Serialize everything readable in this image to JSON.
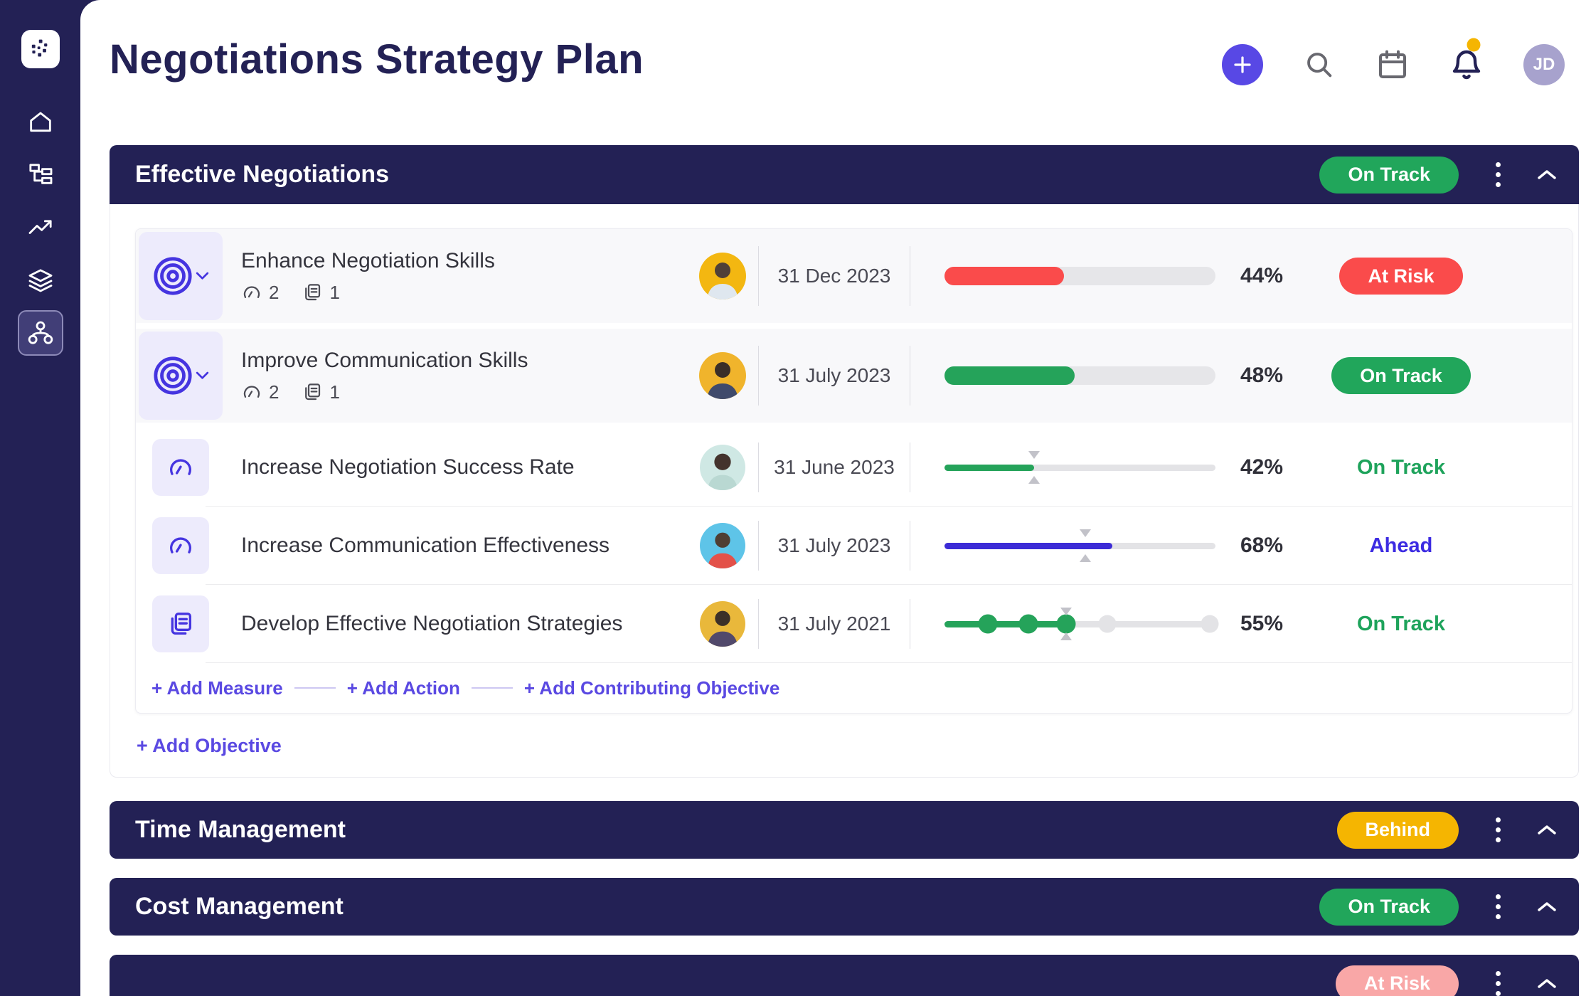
{
  "page_title": "Negotiations Strategy Plan",
  "topbar": {
    "add_label": "+",
    "icons": [
      "add-button",
      "search-icon",
      "calendar-icon",
      "notifications-icon"
    ],
    "notification_unread": true,
    "avatar_initials": "JD"
  },
  "colors": {
    "navy": "#232155",
    "accent": "#5848E5",
    "green": "#21A65B",
    "red": "#FA4B4B",
    "yellow": "#F5B501",
    "pink": "#F9A7A7",
    "indigo_text": "#3C2BE2",
    "lavender": "#EDEBFC"
  },
  "section": {
    "title": "Effective Negotiations",
    "status": "On Track",
    "rows": [
      {
        "type": "objective",
        "title": "Enhance Negotiation Skills",
        "measures_count": "2",
        "actions_count": "1",
        "date": "31 Dec 2023",
        "percent": "44%",
        "progress": 44,
        "status": "At Risk"
      },
      {
        "type": "objective",
        "title": "Improve Communication Skills",
        "measures_count": "2",
        "actions_count": "1",
        "date": "31 July 2023",
        "percent": "48%",
        "progress": 48,
        "status": "On Track"
      },
      {
        "type": "measure",
        "title": "Increase Negotiation Success Rate",
        "date": "31 June 2023",
        "percent": "42%",
        "fill": 33,
        "marker": 33,
        "status": "On Track"
      },
      {
        "type": "measure",
        "title": "Increase Communication Effectiveness",
        "date": "31 July 2023",
        "percent": "68%",
        "fill": 62,
        "marker": 52,
        "status": "Ahead"
      },
      {
        "type": "action",
        "title": "Develop Effective Negotiation Strategies",
        "date": "31 July 2021",
        "percent": "55%",
        "fill": 45,
        "marker": 45,
        "milestones_done": [
          16,
          31,
          45
        ],
        "milestones_todo": [
          60,
          98
        ],
        "status": "On Track"
      }
    ],
    "add_links": [
      "+ Add Measure",
      "+ Add Action",
      "+ Add Contributing Objective"
    ],
    "add_objective": "+ Add Objective"
  },
  "collapsed_sections": [
    {
      "title": "Time Management",
      "status": "Behind"
    },
    {
      "title": "Cost Management",
      "status": "On Track"
    },
    {
      "title": "",
      "status": "At Risk"
    }
  ]
}
